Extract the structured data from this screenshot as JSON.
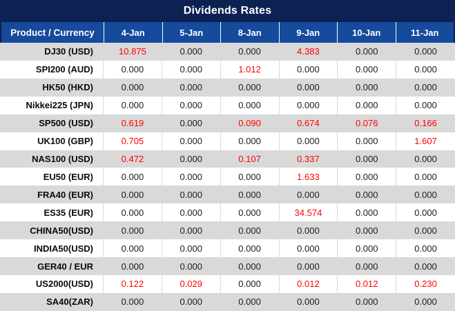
{
  "title": "Dividends Rates",
  "colors": {
    "title_bar_bg": "#0D2152",
    "header_bg": "#154A9C",
    "header_text": "#FFFFFF",
    "row_alt_bg": "#D9D9D9",
    "row_bg": "#FFFFFF",
    "value_zero_text": "#1A1A1E",
    "value_nonzero_text": "#FF0000"
  },
  "table": {
    "product_header": "Product / Currency",
    "date_columns": [
      "4-Jan",
      "5-Jan",
      "8-Jan",
      "9-Jan",
      "10-Jan",
      "11-Jan"
    ],
    "zero_value": "0.000",
    "rows": [
      {
        "product": "DJ30 (USD)",
        "values": [
          "10.875",
          "0.000",
          "0.000",
          "4.383",
          "0.000",
          "0.000"
        ]
      },
      {
        "product": "SPI200 (AUD)",
        "values": [
          "0.000",
          "0.000",
          "1.012",
          "0.000",
          "0.000",
          "0.000"
        ]
      },
      {
        "product": "HK50 (HKD)",
        "values": [
          "0.000",
          "0.000",
          "0.000",
          "0.000",
          "0.000",
          "0.000"
        ]
      },
      {
        "product": "Nikkei225 (JPN)",
        "values": [
          "0.000",
          "0.000",
          "0.000",
          "0.000",
          "0.000",
          "0.000"
        ]
      },
      {
        "product": "SP500 (USD)",
        "values": [
          "0.619",
          "0.000",
          "0.090",
          "0.674",
          "0.076",
          "0.166"
        ]
      },
      {
        "product": "UK100 (GBP)",
        "values": [
          "0.705",
          "0.000",
          "0.000",
          "0.000",
          "0.000",
          "1.607"
        ]
      },
      {
        "product": "NAS100 (USD)",
        "values": [
          "0.472",
          "0.000",
          "0.107",
          "0.337",
          "0.000",
          "0.000"
        ]
      },
      {
        "product": "EU50 (EUR)",
        "values": [
          "0.000",
          "0.000",
          "0.000",
          "1.633",
          "0.000",
          "0.000"
        ]
      },
      {
        "product": "FRA40 (EUR)",
        "values": [
          "0.000",
          "0.000",
          "0.000",
          "0.000",
          "0.000",
          "0.000"
        ]
      },
      {
        "product": "ES35 (EUR)",
        "values": [
          "0.000",
          "0.000",
          "0.000",
          "34.574",
          "0.000",
          "0.000"
        ]
      },
      {
        "product": "CHINA50(USD)",
        "values": [
          "0.000",
          "0.000",
          "0.000",
          "0.000",
          "0.000",
          "0.000"
        ]
      },
      {
        "product": "INDIA50(USD)",
        "values": [
          "0.000",
          "0.000",
          "0.000",
          "0.000",
          "0.000",
          "0.000"
        ]
      },
      {
        "product": "GER40 / EUR",
        "values": [
          "0.000",
          "0.000",
          "0.000",
          "0.000",
          "0.000",
          "0.000"
        ]
      },
      {
        "product": "US2000(USD)",
        "values": [
          "0.122",
          "0.029",
          "0.000",
          "0.012",
          "0.012",
          "0.230"
        ]
      },
      {
        "product": "SA40(ZAR)",
        "values": [
          "0.000",
          "0.000",
          "0.000",
          "0.000",
          "0.000",
          "0.000"
        ]
      }
    ]
  }
}
